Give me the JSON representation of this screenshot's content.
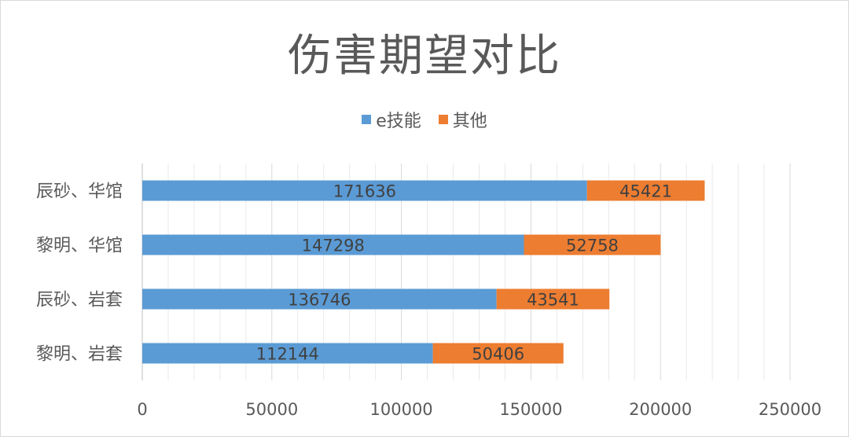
{
  "chart_data": {
    "type": "bar",
    "orientation": "horizontal",
    "stacked": true,
    "title": "伤害期望对比",
    "categories": [
      "辰砂、华馆",
      "黎明、华馆",
      "辰砂、岩套",
      "黎明、岩套"
    ],
    "series": [
      {
        "name": "e技能",
        "color": "#5b9bd5",
        "values": [
          171636,
          147298,
          136746,
          112144
        ]
      },
      {
        "name": "其他",
        "color": "#ed7d31",
        "values": [
          45421,
          52758,
          43541,
          50406
        ]
      }
    ],
    "xlim": [
      0,
      250000
    ],
    "xticks": [
      0,
      50000,
      100000,
      150000,
      200000,
      250000
    ],
    "grid": true,
    "legend_position": "top"
  }
}
